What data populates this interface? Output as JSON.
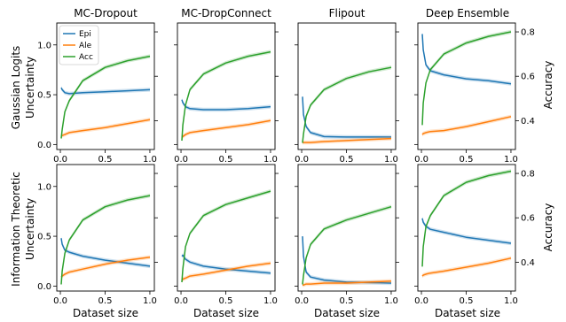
{
  "colors": {
    "epi": "#1f77b4",
    "ale": "#ff7f0e",
    "acc": "#2ca02c"
  },
  "legend": [
    {
      "key": "epi",
      "label": "Epi"
    },
    {
      "key": "ale",
      "label": "Ale"
    },
    {
      "key": "acc",
      "label": "Acc"
    }
  ],
  "columns": [
    "MC-Dropout",
    "MC-DropConnect",
    "Flipout",
    "Deep Ensemble"
  ],
  "rows": [
    "Gaussian Logits Uncertainty",
    "Information Theoretic Uncertainty"
  ],
  "xlabel": "Dataset size",
  "right_ylabel": "Accuracy",
  "chart_data": {
    "type": "line",
    "layout": "2x4 grid with twin y-axes",
    "x": [
      0.01,
      0.02,
      0.05,
      0.1,
      0.25,
      0.5,
      0.75,
      1.0
    ],
    "x_ticks": [
      0.0,
      0.5,
      1.0
    ],
    "x_tick_labels": [
      "0.0",
      "0.5",
      "1.0"
    ],
    "xlim": [
      -0.04,
      1.05
    ],
    "ylim_left": [
      -0.05,
      1.22
    ],
    "y_ticks_left": [
      0.0,
      0.5,
      1.0
    ],
    "y_tick_labels_left": [
      "0.0",
      "0.5",
      "1.0"
    ],
    "ylim_right": [
      0.27,
      0.84
    ],
    "y_ticks_right": [
      0.4,
      0.6,
      0.8
    ],
    "y_tick_labels_right": [
      "0.4",
      "0.6",
      "0.8"
    ],
    "legend_location": "upper-left of first panel",
    "panels": [
      [
        {
          "epi": [
            0.57,
            0.55,
            0.52,
            0.51,
            0.52,
            0.53,
            0.54,
            0.55
          ],
          "ale": [
            0.08,
            0.09,
            0.1,
            0.12,
            0.14,
            0.17,
            0.21,
            0.25
          ],
          "acc": [
            0.32,
            0.36,
            0.44,
            0.49,
            0.58,
            0.64,
            0.67,
            0.69
          ]
        },
        {
          "epi": [
            0.45,
            0.42,
            0.38,
            0.36,
            0.35,
            0.35,
            0.36,
            0.38
          ],
          "ale": [
            0.07,
            0.08,
            0.1,
            0.12,
            0.14,
            0.17,
            0.2,
            0.24
          ],
          "acc": [
            0.31,
            0.38,
            0.47,
            0.54,
            0.61,
            0.66,
            0.69,
            0.71
          ]
        },
        {
          "epi": [
            0.48,
            0.3,
            0.18,
            0.12,
            0.08,
            0.075,
            0.075,
            0.075
          ],
          "ale": [
            0.02,
            0.02,
            0.02,
            0.02,
            0.03,
            0.04,
            0.05,
            0.06
          ],
          "acc": [
            0.3,
            0.34,
            0.42,
            0.47,
            0.54,
            0.59,
            0.62,
            0.64
          ]
        },
        {
          "epi": [
            1.11,
            0.95,
            0.8,
            0.74,
            0.7,
            0.66,
            0.64,
            0.61
          ],
          "ale": [
            0.1,
            0.11,
            0.12,
            0.13,
            0.14,
            0.18,
            0.23,
            0.28
          ],
          "acc": [
            0.38,
            0.48,
            0.57,
            0.63,
            0.7,
            0.75,
            0.78,
            0.8
          ]
        }
      ],
      [
        {
          "epi": [
            0.48,
            0.42,
            0.36,
            0.34,
            0.3,
            0.26,
            0.23,
            0.2
          ],
          "ale": [
            0.09,
            0.1,
            0.12,
            0.14,
            0.17,
            0.22,
            0.26,
            0.29
          ],
          "acc": [
            0.3,
            0.36,
            0.44,
            0.5,
            0.59,
            0.65,
            0.68,
            0.7
          ]
        },
        {
          "epi": [
            0.3,
            0.31,
            0.27,
            0.24,
            0.2,
            0.17,
            0.15,
            0.13
          ],
          "ale": [
            0.05,
            0.07,
            0.08,
            0.1,
            0.12,
            0.16,
            0.2,
            0.23
          ],
          "acc": [
            0.31,
            0.37,
            0.47,
            0.53,
            0.61,
            0.66,
            0.69,
            0.72
          ]
        },
        {
          "epi": [
            0.5,
            0.3,
            0.14,
            0.09,
            0.06,
            0.04,
            0.035,
            0.03
          ],
          "ale": [
            0.01,
            0.01,
            0.02,
            0.02,
            0.03,
            0.03,
            0.04,
            0.05
          ],
          "acc": [
            0.3,
            0.34,
            0.42,
            0.48,
            0.55,
            0.59,
            0.62,
            0.65
          ]
        },
        {
          "epi": [
            0.68,
            0.64,
            0.6,
            0.57,
            0.54,
            0.49,
            0.46,
            0.43
          ],
          "ale": [
            0.1,
            0.11,
            0.12,
            0.13,
            0.15,
            0.19,
            0.23,
            0.28
          ],
          "acc": [
            0.38,
            0.47,
            0.56,
            0.61,
            0.7,
            0.76,
            0.79,
            0.81
          ]
        }
      ]
    ]
  }
}
